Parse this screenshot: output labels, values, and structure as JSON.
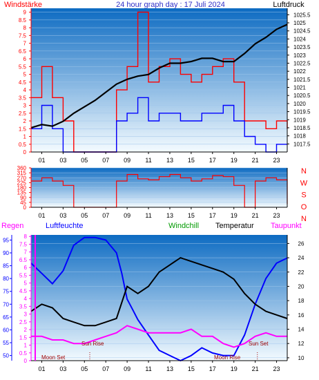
{
  "chart_data": [
    {
      "type": "line",
      "title": "24 hour graph day : 17 Juli 2024",
      "left_axis_label": "Windstärke",
      "right_axis_label": "Luftdruck",
      "x_ticks": [
        "01",
        "03",
        "05",
        "07",
        "09",
        "11",
        "13",
        "15",
        "17",
        "19",
        "21",
        "23"
      ],
      "left_ticks": [
        "0",
        "0.5",
        "1",
        "1.5",
        "2",
        "2.5",
        "3",
        "3.5",
        "4",
        "4.5",
        "5",
        "5.5",
        "6",
        "6.5",
        "7",
        "7.5",
        "8",
        "8.5",
        "9"
      ],
      "right_ticks": [
        "1017.5",
        "1018",
        "1018.5",
        "1019",
        "1019.5",
        "1020",
        "1020.5",
        "1021",
        "1021.5",
        "1022",
        "1022.5",
        "1023",
        "1023.5",
        "1024",
        "1024.5",
        "1025",
        "1025.5"
      ],
      "xlim": [
        0,
        24
      ],
      "ylim_left": [
        0,
        9.25
      ],
      "ylim_right": [
        1017.0,
        1025.9
      ],
      "series": [
        {
          "name": "Windstärke",
          "role": "gust",
          "color": "#ff0000",
          "x": [
            0,
            1,
            2,
            3,
            4,
            5,
            6,
            7,
            8,
            9,
            10,
            11,
            12,
            13,
            14,
            15,
            16,
            17,
            18,
            19,
            20,
            21,
            22,
            23,
            24
          ],
          "y": [
            3.5,
            5.5,
            3.5,
            2,
            0,
            0,
            0,
            0,
            4,
            5.5,
            9,
            4.5,
            5.5,
            6,
            5,
            4.5,
            5,
            5.5,
            6,
            4.5,
            2,
            2,
            1.5,
            2,
            1.5
          ]
        },
        {
          "name": "Wind (Mittel)",
          "role": "mean",
          "color": "#0000ff",
          "x": [
            0,
            1,
            2,
            3,
            4,
            5,
            6,
            7,
            8,
            9,
            10,
            11,
            12,
            13,
            14,
            15,
            16,
            17,
            18,
            19,
            20,
            21,
            22,
            23,
            24
          ],
          "y": [
            1.5,
            3,
            1.5,
            0,
            0,
            0,
            0,
            0,
            2,
            2.5,
            3.5,
            2,
            2.5,
            2.5,
            2,
            2,
            2.5,
            2.5,
            3,
            2,
            1,
            0.5,
            0,
            0.5,
            0.5
          ]
        },
        {
          "name": "Luftdruck",
          "color": "#000000",
          "axis": "right",
          "x": [
            0,
            1,
            2,
            3,
            4,
            5,
            6,
            7,
            8,
            9,
            10,
            11,
            12,
            13,
            14,
            15,
            16,
            17,
            18,
            19,
            20,
            21,
            22,
            23,
            24
          ],
          "y": [
            1018.5,
            1018.7,
            1018.6,
            1018.9,
            1019.4,
            1019.8,
            1020.2,
            1020.7,
            1021.2,
            1021.5,
            1021.7,
            1021.8,
            1022.2,
            1022.5,
            1022.5,
            1022.6,
            1022.8,
            1022.8,
            1022.6,
            1022.6,
            1023.1,
            1023.7,
            1024.1,
            1024.6,
            1024.9
          ]
        }
      ]
    },
    {
      "type": "line",
      "right_labels": [
        "N",
        "W",
        "S",
        "O",
        "N"
      ],
      "x_ticks": [
        "01",
        "03",
        "05",
        "07",
        "09",
        "11",
        "13",
        "15",
        "17",
        "19",
        "21",
        "23"
      ],
      "y_ticks": [
        "0",
        "45",
        "90",
        "135",
        "180",
        "225",
        "270",
        "315",
        "360"
      ],
      "xlim": [
        0,
        24
      ],
      "ylim": [
        0,
        360
      ],
      "series": [
        {
          "name": "Windrichtung",
          "color": "#ff0000",
          "x": [
            0,
            1,
            2,
            3,
            4,
            5,
            6,
            7,
            8,
            9,
            10,
            11,
            12,
            13,
            14,
            15,
            16,
            17,
            18,
            19,
            20,
            21,
            22,
            23,
            24
          ],
          "y": [
            240,
            270,
            240,
            200,
            0,
            0,
            0,
            0,
            240,
            300,
            260,
            250,
            280,
            300,
            270,
            240,
            260,
            290,
            280,
            200,
            0,
            240,
            270,
            250,
            30
          ]
        }
      ]
    },
    {
      "type": "line",
      "labels": {
        "regen": "Regen",
        "luftfeuchte": "Luftfeuchte",
        "windchill": "Windchill",
        "temperatur": "Temperatur",
        "taupunkt": "Taupunkt"
      },
      "annotations": {
        "moon_set_1": "Moon Set",
        "sun_rise": "Sun Rise",
        "moon_rise": "Moon Rise",
        "sun_set": "Sun Set"
      },
      "x_ticks": [
        "01",
        "03",
        "05",
        "07",
        "09",
        "11",
        "13",
        "15",
        "17",
        "19",
        "21",
        "23"
      ],
      "humidity_ticks": [
        "50",
        "55",
        "60",
        "65",
        "70",
        "75",
        "80",
        "85",
        "90",
        "95"
      ],
      "rain_ticks": [
        "0",
        "0.5",
        "1",
        "1.5",
        "2",
        "2.5",
        "3",
        "3.5",
        "4",
        "4.5",
        "5",
        "5.5",
        "6",
        "6.5",
        "7",
        "7.5",
        "8"
      ],
      "temp_ticks": [
        "10",
        "12",
        "14",
        "16",
        "18",
        "20",
        "22",
        "24",
        "26"
      ],
      "xlim": [
        0,
        24
      ],
      "ylim_humidity": [
        48,
        97
      ],
      "ylim_rain": [
        0,
        8.1
      ],
      "ylim_temp": [
        9.6,
        27.2
      ],
      "series": [
        {
          "name": "Luftfeuchte",
          "color": "#0000ff",
          "axis": "humidity",
          "x": [
            0,
            0.5,
            1,
            2,
            3,
            3.5,
            4,
            5,
            6,
            7,
            8,
            8.5,
            9,
            9.5,
            10,
            11,
            12,
            13,
            14,
            15,
            16,
            17,
            18,
            19,
            20,
            21,
            22,
            23,
            24
          ],
          "y": [
            86,
            84,
            82,
            78,
            83,
            88,
            93,
            96,
            96,
            95,
            90,
            82,
            72,
            68,
            64,
            58,
            52,
            50,
            48,
            50,
            53,
            51,
            50,
            50,
            58,
            70,
            80,
            86,
            88
          ]
        },
        {
          "name": "Temperatur",
          "color": "#000000",
          "axis": "temp",
          "x": [
            0,
            1,
            2,
            3,
            4,
            5,
            6,
            7,
            8,
            9,
            10,
            11,
            12,
            13,
            14,
            15,
            16,
            17,
            18,
            19,
            20,
            21,
            22,
            23,
            24
          ],
          "y": [
            16.5,
            17.5,
            17,
            15.5,
            15,
            14.5,
            14.5,
            15,
            15.5,
            20,
            19,
            20,
            22,
            23,
            24,
            23.5,
            23,
            22.5,
            22,
            21,
            19,
            17.5,
            16.5,
            16,
            15.5
          ]
        },
        {
          "name": "Taupunkt",
          "color": "#ff00ff",
          "axis": "temp",
          "x": [
            0,
            1,
            2,
            3,
            4,
            5,
            6,
            7,
            8,
            9,
            10,
            11,
            12,
            13,
            14,
            15,
            16,
            17,
            18,
            19,
            20,
            21,
            22,
            23,
            24
          ],
          "y": [
            13,
            13,
            12.5,
            12.5,
            12,
            12,
            12.5,
            13,
            13.5,
            14.5,
            14,
            13.5,
            13.5,
            13.5,
            13.5,
            14,
            13,
            13,
            12,
            11.5,
            12,
            13,
            13.5,
            13,
            13
          ]
        }
      ]
    }
  ],
  "colors": {
    "panel_top": "#0d6bc2",
    "panel_bottom": "#f4fbff",
    "label_red": "#ff0000",
    "label_blue": "#0000ff",
    "label_green": "#009a00",
    "label_magenta": "#ff00ff",
    "title_blue": "#3030c8",
    "annotation": "#a00000"
  }
}
